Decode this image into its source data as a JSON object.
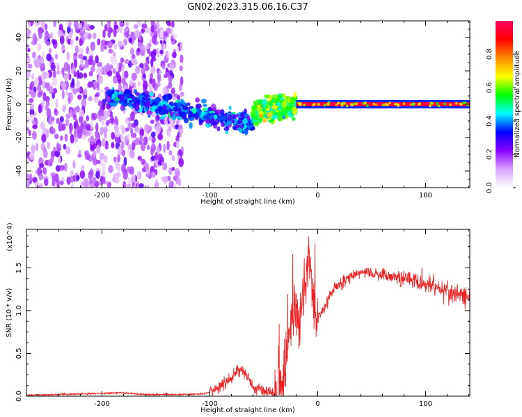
{
  "title": "GN02.2023.315.06.16.C37",
  "chart_data": [
    {
      "type": "heatmap",
      "xlabel": "Height of straight line (km)",
      "ylabel": "Frequency (Hz)",
      "xlim": [
        -270,
        141
      ],
      "ylim": [
        -50,
        50
      ],
      "xticks": [
        -200,
        -100,
        0,
        100
      ],
      "xtick_labels": [
        "-200",
        "-100",
        "0",
        "100"
      ],
      "yticks": [
        -40,
        -20,
        0,
        20,
        40
      ],
      "ytick_labels": [
        "-40",
        "-20",
        "0",
        "20",
        "40"
      ],
      "colorbar": {
        "label": "Normalized spectral amplitude",
        "range": [
          0,
          1
        ],
        "ticks": [
          0.0,
          0.2,
          0.4,
          0.6,
          0.8
        ],
        "tick_labels": [
          "0.0",
          "0.2",
          "0.4",
          "0.6",
          "0.8"
        ],
        "colormap": [
          "#ffffff",
          "#d9a3ff",
          "#8a00ff",
          "#0000ff",
          "#00ffff",
          "#00ff00",
          "#ffff00",
          "#ff8800",
          "#ff0000",
          "#ff0066"
        ]
      },
      "regions": [
        {
          "x_range": [
            -270,
            -125
          ],
          "freq_range": [
            -50,
            50
          ],
          "level": 0.15
        },
        {
          "x_range": [
            -195,
            -60
          ],
          "freq_center": [
            5,
            -12
          ],
          "level": 0.35
        },
        {
          "x_range": [
            -60,
            -20
          ],
          "freq_center": [
            -5,
            0
          ],
          "level": 0.55
        },
        {
          "x_range": [
            -20,
            141
          ],
          "freq_center": [
            0,
            0
          ],
          "level": 0.95
        }
      ],
      "grid": false
    },
    {
      "type": "line",
      "color": "#ee2222",
      "xlabel": "Height of straight line (km)",
      "ylabel": "SNR (10 * v/v)",
      "y_multiplier_label": "(x10^4)",
      "xlim": [
        -270,
        141
      ],
      "ylim": [
        0,
        1.95
      ],
      "xticks": [
        -200,
        -100,
        0,
        100
      ],
      "xtick_labels": [
        "-200",
        "-100",
        "0",
        "100"
      ],
      "yticks": [
        0.0,
        0.5,
        1.0,
        1.5
      ],
      "ytick_labels": [
        "0.0",
        "0.5",
        "1.0",
        "1.5"
      ],
      "series": [
        {
          "x": [
            -270,
            -240,
            -210,
            -180,
            -160,
            -140,
            -120,
            -105,
            -95,
            -85,
            -78,
            -72,
            -68,
            -62,
            -58,
            -52,
            -46,
            -40,
            -36,
            -32,
            -28,
            -24,
            -20,
            -16,
            -12,
            -8,
            -4,
            0,
            5,
            10,
            15,
            20,
            25,
            30,
            40,
            50,
            60,
            70,
            80,
            90,
            100,
            110,
            120,
            130,
            141
          ],
          "y": [
            0.01,
            0.02,
            0.03,
            0.04,
            0.02,
            0.02,
            0.02,
            0.03,
            0.07,
            0.15,
            0.25,
            0.32,
            0.28,
            0.15,
            0.1,
            0.08,
            0.05,
            0.04,
            0.1,
            0.25,
            0.6,
            0.85,
            0.95,
            0.95,
            1.3,
            1.6,
            1.1,
            0.9,
            1.0,
            1.15,
            1.25,
            1.3,
            1.35,
            1.4,
            1.44,
            1.44,
            1.42,
            1.4,
            1.38,
            1.36,
            1.32,
            1.28,
            1.22,
            1.18,
            1.16
          ]
        }
      ],
      "grid": false
    }
  ]
}
